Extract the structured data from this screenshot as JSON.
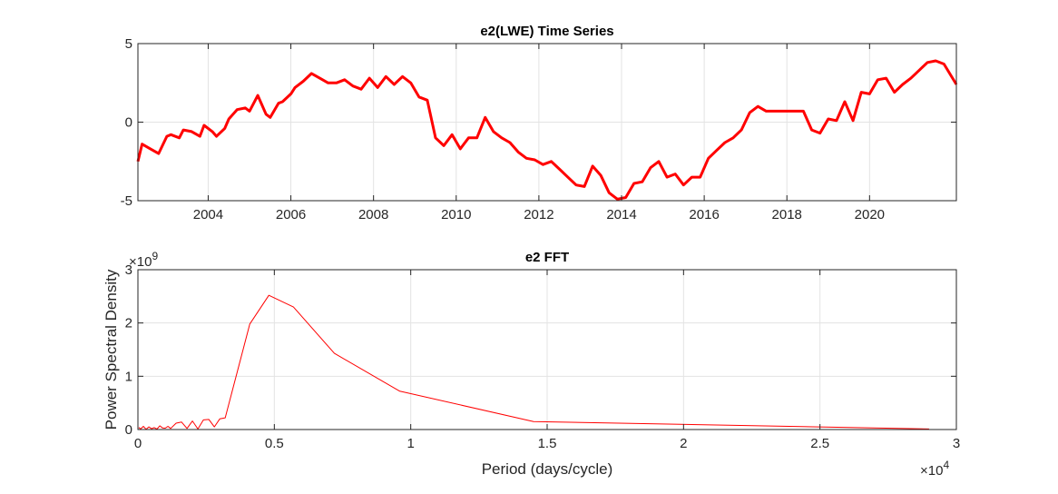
{
  "chart_data": [
    {
      "type": "line",
      "title": "e2(LWE) Time Series",
      "xlabel": "",
      "ylabel": "",
      "xlim": [
        2002.3,
        2022.1
      ],
      "ylim": [
        -5,
        5
      ],
      "xticks": [
        2004,
        2006,
        2008,
        2010,
        2012,
        2014,
        2016,
        2018,
        2020
      ],
      "xtick_labels": [
        "2004",
        "2006",
        "2008",
        "2010",
        "2012",
        "2014",
        "2016",
        "2018",
        "2020"
      ],
      "yticks": [
        -5,
        0,
        5
      ],
      "ytick_labels": [
        "-5",
        "0",
        "5"
      ],
      "grid": true,
      "color": "#ff0000",
      "series": [
        {
          "x": [
            2002.3,
            2002.4,
            2002.6,
            2002.8,
            2003.0,
            2003.1,
            2003.3,
            2003.4,
            2003.6,
            2003.8,
            2003.9,
            2004.1,
            2004.2,
            2004.4,
            2004.5,
            2004.7,
            2004.9,
            2005.0,
            2005.2,
            2005.4,
            2005.5,
            2005.7,
            2005.8,
            2006.0,
            2006.1,
            2006.3,
            2006.5,
            2006.7,
            2006.9,
            2007.1,
            2007.3,
            2007.5,
            2007.7,
            2007.9,
            2008.1,
            2008.3,
            2008.5,
            2008.7,
            2008.9,
            2009.1,
            2009.3,
            2009.5,
            2009.7,
            2009.9,
            2010.1,
            2010.3,
            2010.5,
            2010.7,
            2010.9,
            2011.1,
            2011.3,
            2011.5,
            2011.7,
            2011.9,
            2012.1,
            2012.3,
            2012.5,
            2012.7,
            2012.9,
            2013.1,
            2013.3,
            2013.5,
            2013.7,
            2013.9,
            2014.1,
            2014.3,
            2014.5,
            2014.7,
            2014.9,
            2015.1,
            2015.3,
            2015.5,
            2015.7,
            2015.9,
            2016.1,
            2016.3,
            2016.5,
            2016.7,
            2016.9,
            2017.1,
            2017.3,
            2017.5,
            2017.8,
            2018.1,
            2018.4,
            2018.6,
            2018.8,
            2019.0,
            2019.2,
            2019.4,
            2019.6,
            2019.8,
            2020.0,
            2020.2,
            2020.4,
            2020.6,
            2020.8,
            2021.0,
            2021.2,
            2021.4,
            2021.6,
            2021.8,
            2022.1
          ],
          "y": [
            -2.5,
            -1.4,
            -1.7,
            -2.0,
            -0.9,
            -0.8,
            -1.0,
            -0.5,
            -0.6,
            -0.9,
            -0.2,
            -0.6,
            -0.9,
            -0.4,
            0.2,
            0.8,
            0.9,
            0.7,
            1.7,
            0.5,
            0.3,
            1.2,
            1.3,
            1.8,
            2.2,
            2.6,
            3.1,
            2.8,
            2.5,
            2.5,
            2.7,
            2.3,
            2.1,
            2.8,
            2.2,
            2.9,
            2.4,
            2.9,
            2.5,
            1.6,
            1.4,
            -1.0,
            -1.5,
            -0.8,
            -1.7,
            -1.0,
            -1.0,
            0.3,
            -0.6,
            -1.0,
            -1.3,
            -1.9,
            -2.3,
            -2.4,
            -2.7,
            -2.5,
            -3.0,
            -3.5,
            -4.0,
            -4.1,
            -2.8,
            -3.4,
            -4.5,
            -4.9,
            -4.8,
            -3.9,
            -3.8,
            -2.9,
            -2.5,
            -3.5,
            -3.3,
            -4.0,
            -3.5,
            -3.5,
            -2.3,
            -1.8,
            -1.3,
            -1.0,
            -0.5,
            0.6,
            1.0,
            0.7,
            0.7,
            0.7,
            0.7,
            -0.5,
            -0.7,
            0.2,
            0.1,
            1.3,
            0.1,
            1.9,
            1.8,
            2.7,
            2.8,
            1.9,
            2.4,
            2.8,
            3.3,
            3.8,
            3.9,
            3.7,
            2.4
          ]
        }
      ]
    },
    {
      "type": "line",
      "title": "e2 FFT",
      "xlabel": "Period (days/cycle)",
      "ylabel": "Power Spectral Density",
      "xlim": [
        0,
        30000
      ],
      "ylim": [
        0,
        3000000000
      ],
      "x_exponent_label": "×10",
      "x_exponent": "4",
      "y_exponent_label": "×10",
      "y_exponent": "9",
      "xticks": [
        0,
        5000,
        10000,
        15000,
        20000,
        25000,
        30000
      ],
      "xtick_labels": [
        "0",
        "0.5",
        "1",
        "1.5",
        "2",
        "2.5",
        "3"
      ],
      "yticks": [
        0,
        1000000000,
        2000000000,
        3000000000
      ],
      "ytick_labels": [
        "0",
        "1",
        "2",
        "3"
      ],
      "grid": true,
      "color": "#ff0000",
      "series": [
        {
          "x": [
            30,
            100,
            200,
            300,
            400,
            500,
            600,
            700,
            800,
            900,
            1000,
            1100,
            1200,
            1400,
            1600,
            1800,
            2000,
            2200,
            2400,
            2600,
            2800,
            3000,
            3200,
            4100,
            4800,
            5700,
            7200,
            9600,
            14500,
            29000
          ],
          "y": [
            40000000,
            10000000,
            60000000,
            5000000,
            50000000,
            15000000,
            35000000,
            8000000,
            70000000,
            30000000,
            25000000,
            60000000,
            20000000,
            120000000,
            140000000,
            20000000,
            160000000,
            10000000,
            180000000,
            190000000,
            50000000,
            200000000,
            220000000,
            1980000000,
            2520000000,
            2300000000,
            1430000000,
            720000000,
            150000000,
            10000000
          ]
        }
      ]
    }
  ]
}
